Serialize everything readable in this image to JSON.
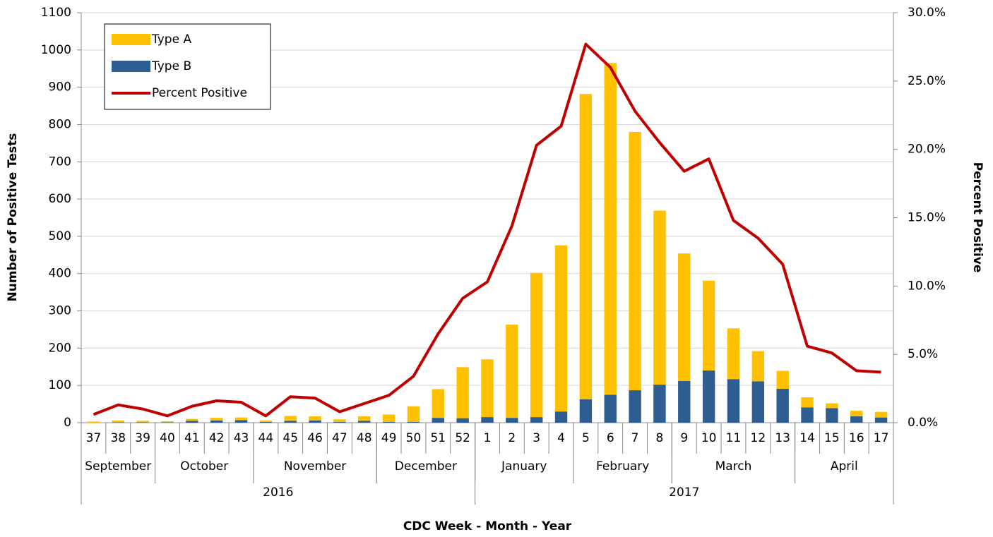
{
  "chart_data": {
    "type": "bar",
    "stacked": true,
    "x_label": "CDC Week - Month - Year",
    "y_label": "Number of Positive Tests",
    "y2_label": "Percent Positive",
    "categories": [
      "37",
      "38",
      "39",
      "40",
      "41",
      "42",
      "43",
      "44",
      "45",
      "46",
      "47",
      "48",
      "49",
      "50",
      "51",
      "52",
      "1",
      "2",
      "3",
      "4",
      "5",
      "6",
      "7",
      "8",
      "9",
      "10",
      "11",
      "12",
      "13",
      "14",
      "15",
      "16",
      "17"
    ],
    "month_groups": [
      {
        "label": "September",
        "count": 3
      },
      {
        "label": "October",
        "count": 4
      },
      {
        "label": "November",
        "count": 5
      },
      {
        "label": "December",
        "count": 4
      },
      {
        "label": "January",
        "count": 4
      },
      {
        "label": "February",
        "count": 4
      },
      {
        "label": "March",
        "count": 5
      },
      {
        "label": "April",
        "count": 4
      }
    ],
    "year_groups": [
      {
        "label": "2016",
        "count": 16
      },
      {
        "label": "2017",
        "count": 17
      }
    ],
    "series": [
      {
        "name": "Type A",
        "type": "bar",
        "color": "#FFC000",
        "values": [
          3,
          5,
          4,
          3,
          5,
          7,
          7,
          4,
          13,
          11,
          7,
          12,
          20,
          42,
          77,
          137,
          155,
          250,
          387,
          446,
          819,
          890,
          693,
          467,
          342,
          241,
          136,
          81,
          48,
          27,
          13,
          15,
          15
        ]
      },
      {
        "name": "Type B",
        "type": "bar",
        "color": "#2E5E91",
        "values": [
          0,
          1,
          1,
          1,
          5,
          6,
          7,
          2,
          5,
          6,
          2,
          5,
          2,
          2,
          13,
          12,
          15,
          13,
          15,
          30,
          63,
          75,
          87,
          102,
          112,
          140,
          117,
          111,
          91,
          41,
          39,
          17,
          14
        ]
      },
      {
        "name": "Percent Positive",
        "type": "line",
        "axis": "y2",
        "color": "#C00000",
        "values": [
          0.6,
          1.3,
          1.0,
          0.5,
          1.2,
          1.6,
          1.5,
          0.5,
          1.9,
          1.8,
          0.8,
          1.4,
          2.0,
          3.4,
          6.5,
          9.1,
          10.3,
          14.4,
          20.3,
          21.7,
          27.7,
          26.0,
          22.8,
          20.5,
          18.4,
          19.3,
          14.8,
          13.5,
          11.6,
          5.6,
          5.1,
          3.8,
          3.7
        ]
      }
    ],
    "ylim": [
      0,
      1100
    ],
    "yticks": [
      0,
      100,
      200,
      300,
      400,
      500,
      600,
      700,
      800,
      900,
      1000,
      1100
    ],
    "y2lim": [
      0,
      30
    ],
    "y2ticks": [
      {
        "value": 0,
        "label": "0.0%"
      },
      {
        "value": 5,
        "label": "5.0%"
      },
      {
        "value": 10,
        "label": "10.0%"
      },
      {
        "value": 15,
        "label": "15.0%"
      },
      {
        "value": 20,
        "label": "20.0%"
      },
      {
        "value": 25,
        "label": "25.0%"
      },
      {
        "value": 30,
        "label": "30.0%"
      }
    ],
    "grid": true,
    "legend": "top-left"
  }
}
